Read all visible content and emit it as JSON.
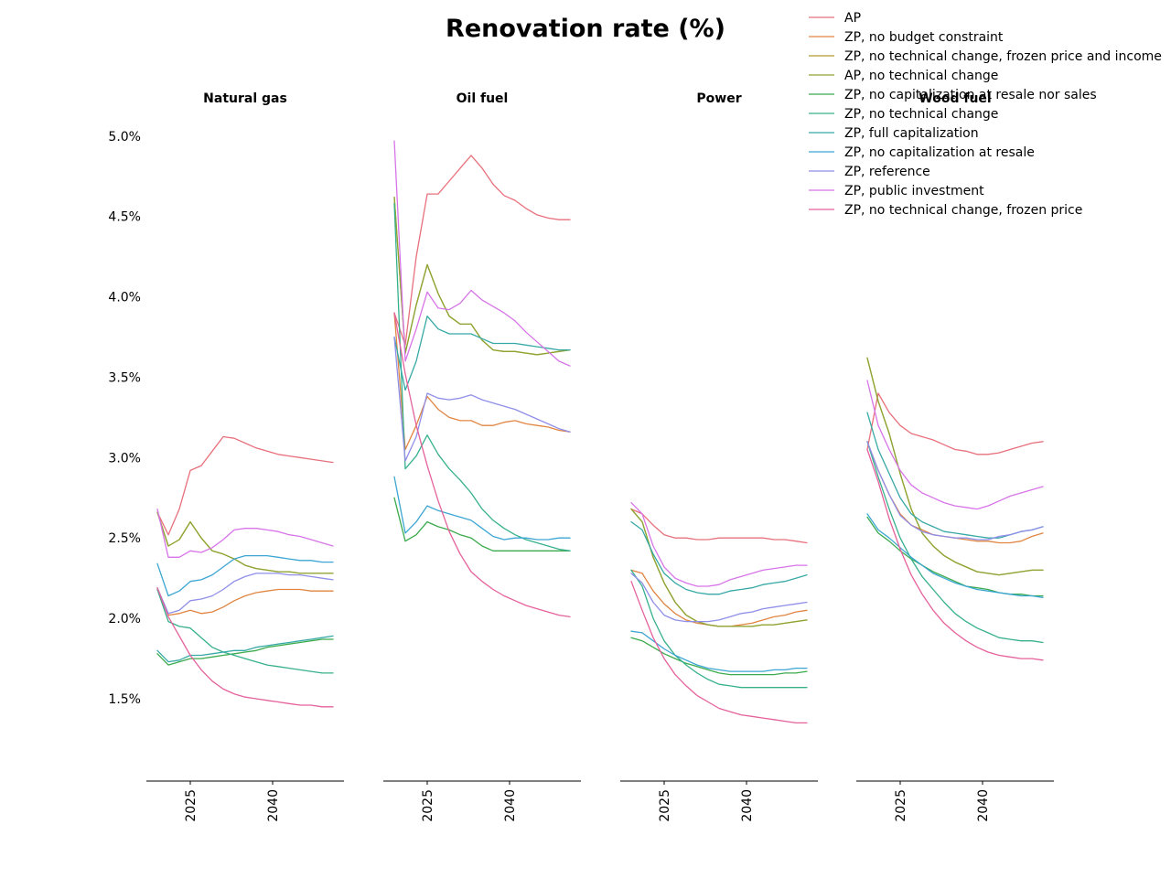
{
  "chart_data": {
    "type": "line",
    "title": "Renovation rate (%)",
    "xlabel": "",
    "ylabel": "",
    "grid": false,
    "legend_placement": "top-right",
    "x": [
      2019,
      2021,
      2023,
      2025,
      2027,
      2029,
      2031,
      2033,
      2035,
      2037,
      2039,
      2041,
      2043,
      2045,
      2047,
      2049,
      2051
    ],
    "xlim": [
      2017,
      2053
    ],
    "xticks": [
      2025,
      2040
    ],
    "xtick_labels": [
      "2025",
      "2040"
    ],
    "ylim": [
      1.17,
      5.05
    ],
    "yticks": [
      1.5,
      2.0,
      2.5,
      3.0,
      3.5,
      4.0,
      4.5,
      5.0
    ],
    "ytick_labels": [
      "1.5%",
      "2.0%",
      "2.5%",
      "3.0%",
      "3.5%",
      "4.0%",
      "4.5%",
      "5.0%"
    ],
    "series_meta": [
      {
        "name": "AP",
        "color": "#e8707c"
      },
      {
        "name": "ZP, no budget constraint",
        "color": "#e08542"
      },
      {
        "name": "ZP, no technical change, frozen price and income",
        "color": "#b09a30"
      },
      {
        "name": "AP, no technical change",
        "color": "#8ea534"
      },
      {
        "name": "ZP, no capitalization at resale nor sales",
        "color": "#3bab4d"
      },
      {
        "name": "ZP, no technical change",
        "color": "#37b08c"
      },
      {
        "name": "ZP, full capitalization",
        "color": "#36a9a6"
      },
      {
        "name": "ZP, no capitalization at resale",
        "color": "#3ba6d3"
      },
      {
        "name": "ZP, reference",
        "color": "#8f8ee8"
      },
      {
        "name": "ZP, public investment",
        "color": "#d774e8"
      },
      {
        "name": "ZP, no technical change, frozen price",
        "color": "#e5619c"
      }
    ],
    "panels": [
      {
        "title": "Natural gas",
        "values": [
          [
            2.66,
            2.52,
            2.68,
            2.92,
            2.95,
            3.04,
            3.13,
            3.12,
            3.09,
            3.06,
            3.04,
            3.02,
            3.01,
            3.0,
            2.99,
            2.98,
            2.97
          ],
          [
            2.18,
            2.02,
            2.03,
            2.05,
            2.03,
            2.04,
            2.07,
            2.11,
            2.14,
            2.16,
            2.17,
            2.18,
            2.18,
            2.18,
            2.17,
            2.17,
            2.17
          ],
          [
            2.66,
            2.45,
            2.49,
            2.6,
            2.5,
            2.42,
            2.4,
            2.37,
            2.33,
            2.31,
            2.3,
            2.29,
            2.29,
            2.28,
            2.28,
            2.28,
            2.28
          ],
          [
            2.66,
            2.45,
            2.49,
            2.6,
            2.5,
            2.42,
            2.4,
            2.37,
            2.33,
            2.31,
            2.3,
            2.29,
            2.29,
            2.28,
            2.28,
            2.28,
            2.28
          ],
          [
            1.78,
            1.71,
            1.73,
            1.75,
            1.75,
            1.76,
            1.77,
            1.78,
            1.79,
            1.8,
            1.82,
            1.83,
            1.84,
            1.85,
            1.86,
            1.87,
            1.87
          ],
          [
            2.18,
            1.98,
            1.95,
            1.94,
            1.88,
            1.82,
            1.79,
            1.77,
            1.75,
            1.73,
            1.71,
            1.7,
            1.69,
            1.68,
            1.67,
            1.66,
            1.66
          ],
          [
            1.8,
            1.73,
            1.74,
            1.77,
            1.77,
            1.78,
            1.79,
            1.8,
            1.8,
            1.82,
            1.83,
            1.84,
            1.85,
            1.86,
            1.87,
            1.88,
            1.89
          ],
          [
            2.34,
            2.14,
            2.17,
            2.23,
            2.24,
            2.27,
            2.32,
            2.37,
            2.39,
            2.39,
            2.39,
            2.38,
            2.37,
            2.36,
            2.36,
            2.35,
            2.35
          ],
          [
            2.19,
            2.03,
            2.05,
            2.11,
            2.12,
            2.14,
            2.18,
            2.23,
            2.26,
            2.28,
            2.28,
            2.28,
            2.27,
            2.27,
            2.26,
            2.25,
            2.24
          ],
          [
            2.68,
            2.38,
            2.38,
            2.42,
            2.41,
            2.44,
            2.49,
            2.55,
            2.56,
            2.56,
            2.55,
            2.54,
            2.52,
            2.51,
            2.49,
            2.47,
            2.45
          ],
          [
            2.19,
            2.01,
            1.89,
            1.77,
            1.68,
            1.61,
            1.56,
            1.53,
            1.51,
            1.5,
            1.49,
            1.48,
            1.47,
            1.46,
            1.46,
            1.45,
            1.45
          ]
        ]
      },
      {
        "title": "Oil fuel",
        "values": [
          [
            3.9,
            3.7,
            4.25,
            4.64,
            4.64,
            4.72,
            4.8,
            4.88,
            4.8,
            4.7,
            4.63,
            4.6,
            4.55,
            4.51,
            4.49,
            4.48,
            4.48
          ],
          [
            3.9,
            3.05,
            3.2,
            3.38,
            3.3,
            3.25,
            3.23,
            3.23,
            3.2,
            3.2,
            3.22,
            3.23,
            3.21,
            3.2,
            3.19,
            3.17,
            3.16
          ],
          [
            4.62,
            3.65,
            3.95,
            4.2,
            4.02,
            3.88,
            3.83,
            3.83,
            3.73,
            3.67,
            3.66,
            3.66,
            3.65,
            3.64,
            3.65,
            3.66,
            3.67
          ],
          [
            4.62,
            3.65,
            3.95,
            4.2,
            4.02,
            3.88,
            3.83,
            3.83,
            3.73,
            3.67,
            3.66,
            3.66,
            3.65,
            3.64,
            3.65,
            3.66,
            3.67
          ],
          [
            2.75,
            2.48,
            2.52,
            2.6,
            2.57,
            2.55,
            2.52,
            2.5,
            2.45,
            2.42,
            2.42,
            2.42,
            2.42,
            2.42,
            2.42,
            2.42,
            2.42
          ],
          [
            4.58,
            2.93,
            3.01,
            3.14,
            3.02,
            2.93,
            2.86,
            2.78,
            2.68,
            2.61,
            2.56,
            2.52,
            2.49,
            2.47,
            2.45,
            2.43,
            2.42
          ],
          [
            3.75,
            3.42,
            3.6,
            3.88,
            3.8,
            3.77,
            3.77,
            3.77,
            3.74,
            3.71,
            3.71,
            3.71,
            3.7,
            3.69,
            3.68,
            3.67,
            3.67
          ],
          [
            2.88,
            2.53,
            2.6,
            2.7,
            2.67,
            2.65,
            2.63,
            2.61,
            2.56,
            2.51,
            2.49,
            2.5,
            2.5,
            2.49,
            2.49,
            2.5,
            2.5
          ],
          [
            3.75,
            2.98,
            3.13,
            3.4,
            3.37,
            3.36,
            3.37,
            3.39,
            3.36,
            3.34,
            3.32,
            3.3,
            3.27,
            3.24,
            3.21,
            3.18,
            3.16
          ],
          [
            4.97,
            3.6,
            3.8,
            4.03,
            3.93,
            3.92,
            3.96,
            4.04,
            3.98,
            3.94,
            3.9,
            3.85,
            3.78,
            3.72,
            3.66,
            3.6,
            3.57
          ],
          [
            3.9,
            3.52,
            3.2,
            2.95,
            2.73,
            2.54,
            2.4,
            2.29,
            2.23,
            2.18,
            2.14,
            2.11,
            2.08,
            2.06,
            2.04,
            2.02,
            2.01
          ]
        ]
      },
      {
        "title": "Power",
        "values": [
          [
            2.68,
            2.65,
            2.58,
            2.52,
            2.5,
            2.5,
            2.49,
            2.49,
            2.5,
            2.5,
            2.5,
            2.5,
            2.5,
            2.49,
            2.49,
            2.48,
            2.47
          ],
          [
            2.3,
            2.28,
            2.17,
            2.09,
            2.03,
            1.99,
            1.97,
            1.96,
            1.95,
            1.95,
            1.96,
            1.97,
            1.99,
            2.01,
            2.02,
            2.04,
            2.05
          ],
          [
            2.68,
            2.6,
            2.38,
            2.22,
            2.1,
            2.02,
            1.98,
            1.96,
            1.95,
            1.95,
            1.95,
            1.95,
            1.96,
            1.96,
            1.97,
            1.98,
            1.99
          ],
          [
            2.68,
            2.6,
            2.38,
            2.22,
            2.1,
            2.02,
            1.98,
            1.96,
            1.95,
            1.95,
            1.95,
            1.95,
            1.96,
            1.96,
            1.97,
            1.98,
            1.99
          ],
          [
            1.88,
            1.86,
            1.82,
            1.78,
            1.75,
            1.72,
            1.7,
            1.68,
            1.66,
            1.65,
            1.65,
            1.65,
            1.65,
            1.65,
            1.66,
            1.66,
            1.67
          ],
          [
            2.3,
            2.2,
            2.0,
            1.86,
            1.77,
            1.71,
            1.66,
            1.62,
            1.59,
            1.58,
            1.57,
            1.57,
            1.57,
            1.57,
            1.57,
            1.57,
            1.57
          ],
          [
            2.6,
            2.55,
            2.4,
            2.28,
            2.22,
            2.18,
            2.16,
            2.15,
            2.15,
            2.17,
            2.18,
            2.19,
            2.21,
            2.22,
            2.23,
            2.25,
            2.27
          ],
          [
            1.92,
            1.91,
            1.86,
            1.81,
            1.77,
            1.74,
            1.71,
            1.69,
            1.68,
            1.67,
            1.67,
            1.67,
            1.67,
            1.68,
            1.68,
            1.69,
            1.69
          ],
          [
            2.28,
            2.22,
            2.1,
            2.02,
            1.99,
            1.98,
            1.98,
            1.98,
            1.99,
            2.01,
            2.03,
            2.04,
            2.06,
            2.07,
            2.08,
            2.09,
            2.1
          ],
          [
            2.72,
            2.65,
            2.45,
            2.32,
            2.25,
            2.22,
            2.2,
            2.2,
            2.21,
            2.24,
            2.26,
            2.28,
            2.3,
            2.31,
            2.32,
            2.33,
            2.33
          ],
          [
            2.23,
            2.05,
            1.88,
            1.75,
            1.65,
            1.58,
            1.52,
            1.48,
            1.44,
            1.42,
            1.4,
            1.39,
            1.38,
            1.37,
            1.36,
            1.35,
            1.35
          ]
        ]
      },
      {
        "title": "Wood fuel",
        "values": [
          [
            3.05,
            3.4,
            3.28,
            3.2,
            3.15,
            3.13,
            3.11,
            3.08,
            3.05,
            3.04,
            3.02,
            3.02,
            3.03,
            3.05,
            3.07,
            3.09,
            3.1
          ],
          [
            3.1,
            2.92,
            2.77,
            2.65,
            2.58,
            2.55,
            2.52,
            2.51,
            2.5,
            2.49,
            2.48,
            2.48,
            2.47,
            2.47,
            2.48,
            2.51,
            2.53
          ],
          [
            3.62,
            3.35,
            3.15,
            2.9,
            2.68,
            2.53,
            2.45,
            2.39,
            2.35,
            2.32,
            2.29,
            2.28,
            2.27,
            2.28,
            2.29,
            2.3,
            2.3
          ],
          [
            3.62,
            3.35,
            3.15,
            2.9,
            2.68,
            2.53,
            2.45,
            2.39,
            2.35,
            2.32,
            2.29,
            2.28,
            2.27,
            2.28,
            2.29,
            2.3,
            2.3
          ],
          [
            2.63,
            2.53,
            2.48,
            2.42,
            2.37,
            2.33,
            2.29,
            2.26,
            2.23,
            2.2,
            2.19,
            2.18,
            2.16,
            2.15,
            2.15,
            2.14,
            2.14
          ],
          [
            3.1,
            2.88,
            2.68,
            2.5,
            2.37,
            2.26,
            2.18,
            2.1,
            2.03,
            1.98,
            1.94,
            1.91,
            1.88,
            1.87,
            1.86,
            1.86,
            1.85
          ],
          [
            3.28,
            3.05,
            2.9,
            2.75,
            2.65,
            2.6,
            2.57,
            2.54,
            2.53,
            2.52,
            2.51,
            2.5,
            2.5,
            2.52,
            2.54,
            2.55,
            2.57
          ],
          [
            2.65,
            2.55,
            2.5,
            2.44,
            2.38,
            2.33,
            2.28,
            2.25,
            2.22,
            2.2,
            2.18,
            2.17,
            2.16,
            2.15,
            2.14,
            2.14,
            2.13
          ],
          [
            3.1,
            2.92,
            2.77,
            2.64,
            2.58,
            2.54,
            2.52,
            2.51,
            2.5,
            2.5,
            2.49,
            2.49,
            2.51,
            2.52,
            2.54,
            2.55,
            2.57
          ],
          [
            3.48,
            3.2,
            3.05,
            2.92,
            2.83,
            2.78,
            2.75,
            2.72,
            2.7,
            2.69,
            2.68,
            2.7,
            2.73,
            2.76,
            2.78,
            2.8,
            2.82
          ],
          [
            3.05,
            2.85,
            2.62,
            2.43,
            2.27,
            2.15,
            2.05,
            1.97,
            1.91,
            1.86,
            1.82,
            1.79,
            1.77,
            1.76,
            1.75,
            1.75,
            1.74
          ]
        ]
      }
    ]
  }
}
